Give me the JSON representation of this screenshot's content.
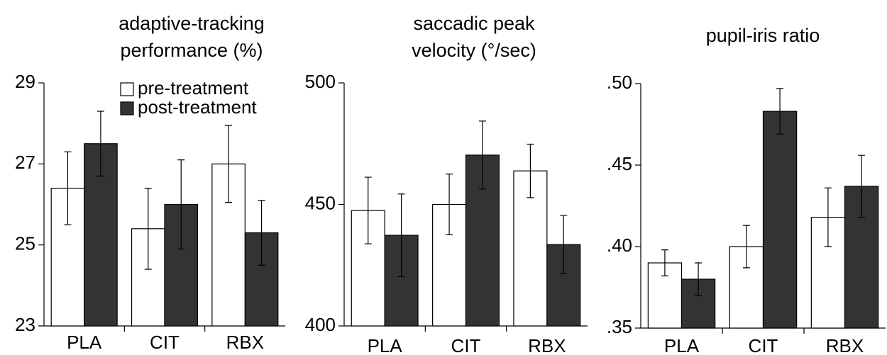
{
  "chart_data": [
    {
      "type": "bar",
      "title": [
        "adaptive-tracking",
        "performance (%)"
      ],
      "categories": [
        "PLA",
        "CIT",
        "RBX"
      ],
      "series": [
        {
          "name": "pre-treatment",
          "color": "#ffffff",
          "values": [
            26.4,
            25.4,
            27.0
          ],
          "errors": [
            0.9,
            1.0,
            0.95
          ]
        },
        {
          "name": "post-treatment",
          "color": "#333333",
          "values": [
            27.5,
            26.0,
            25.3
          ],
          "errors": [
            0.8,
            1.1,
            0.8
          ]
        }
      ],
      "ylim": [
        23,
        29
      ],
      "yticks": [
        23,
        25,
        27,
        29
      ],
      "legend": "upper right"
    },
    {
      "type": "bar",
      "title": [
        "saccadic peak",
        "velocity (°/sec)"
      ],
      "categories": [
        "PLA",
        "CIT",
        "RBX"
      ],
      "series": [
        {
          "name": "pre-treatment",
          "color": "#ffffff",
          "values": [
            447.5,
            450,
            463.8
          ],
          "errors": [
            13.7,
            12.5,
            11
          ]
        },
        {
          "name": "post-treatment",
          "color": "#333333",
          "values": [
            437.3,
            470.3,
            433.5
          ],
          "errors": [
            17,
            14,
            12
          ]
        }
      ],
      "ylim": [
        400,
        500
      ],
      "yticks": [
        400,
        450,
        500
      ]
    },
    {
      "type": "bar",
      "title": [
        "pupil-iris ratio"
      ],
      "categories": [
        "PLA",
        "CIT",
        "RBX"
      ],
      "series": [
        {
          "name": "pre-treatment",
          "color": "#ffffff",
          "values": [
            0.39,
            0.4,
            0.418
          ],
          "errors": [
            0.008,
            0.013,
            0.018
          ]
        },
        {
          "name": "post-treatment",
          "color": "#333333",
          "values": [
            0.38,
            0.483,
            0.437
          ],
          "errors": [
            0.01,
            0.014,
            0.019
          ]
        }
      ],
      "ylim": [
        0.35,
        0.5
      ],
      "yticks": [
        {
          "value": 0.35,
          "label": ".35"
        },
        {
          "value": 0.4,
          "label": ".40"
        },
        {
          "value": 0.45,
          "label": ".45"
        },
        {
          "value": 0.5,
          "label": ".50"
        }
      ]
    }
  ]
}
